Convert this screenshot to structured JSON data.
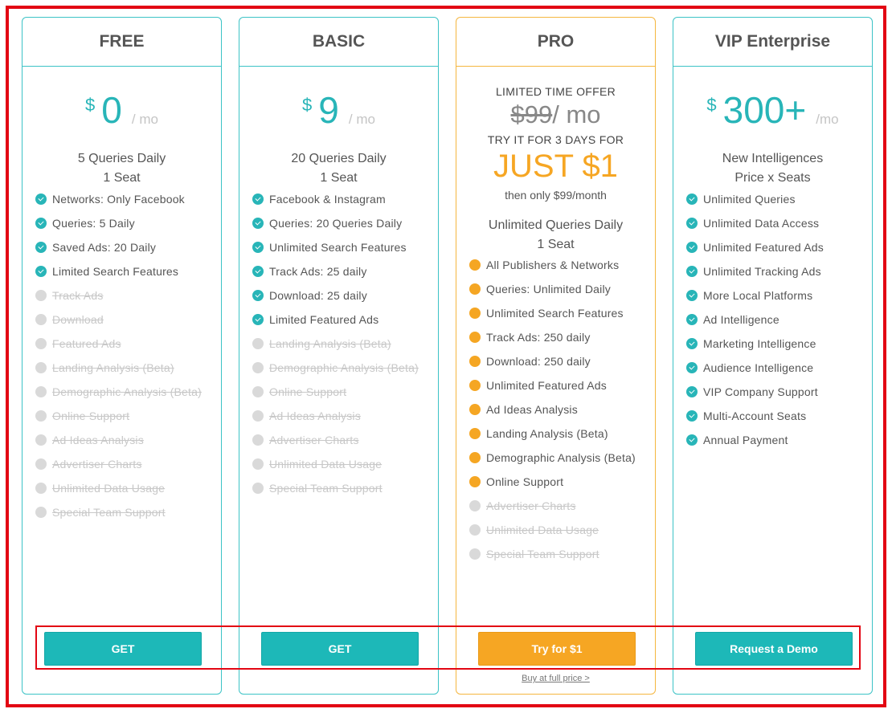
{
  "plans": {
    "free": {
      "name": "FREE",
      "currency": "$",
      "amount": "0",
      "period": "/ mo",
      "summary": [
        "5 Queries Daily",
        "1 Seat"
      ],
      "features": [
        {
          "text": "Networks: Only Facebook",
          "enabled": true
        },
        {
          "text": "Queries: 5 Daily",
          "enabled": true
        },
        {
          "text": "Saved Ads: 20 Daily",
          "enabled": true
        },
        {
          "text": "Limited Search Features",
          "enabled": true
        },
        {
          "text": "Track Ads",
          "enabled": false
        },
        {
          "text": "Download",
          "enabled": false
        },
        {
          "text": "Featured Ads",
          "enabled": false
        },
        {
          "text": "Landing Analysis (Beta)",
          "enabled": false
        },
        {
          "text": "Demographic Analysis (Beta)",
          "enabled": false
        },
        {
          "text": "Online Support",
          "enabled": false
        },
        {
          "text": "Ad Ideas Analysis",
          "enabled": false
        },
        {
          "text": "Advertiser Charts",
          "enabled": false
        },
        {
          "text": "Unlimited Data Usage",
          "enabled": false
        },
        {
          "text": "Special Team Support",
          "enabled": false
        }
      ],
      "button": "GET"
    },
    "basic": {
      "name": "BASIC",
      "currency": "$",
      "amount": "9",
      "period": "/ mo",
      "summary": [
        "20 Queries Daily",
        "1 Seat"
      ],
      "features": [
        {
          "text": "Facebook & Instagram",
          "enabled": true
        },
        {
          "text": "Queries: 20 Queries Daily",
          "enabled": true
        },
        {
          "text": "Unlimited Search Features",
          "enabled": true
        },
        {
          "text": "Track Ads: 25 daily",
          "enabled": true
        },
        {
          "text": "Download: 25 daily",
          "enabled": true
        },
        {
          "text": "Limited Featured Ads",
          "enabled": true
        },
        {
          "text": "Landing Analysis (Beta)",
          "enabled": false
        },
        {
          "text": "Demographic Analysis (Beta)",
          "enabled": false
        },
        {
          "text": "Online Support",
          "enabled": false
        },
        {
          "text": "Ad Ideas Analysis",
          "enabled": false
        },
        {
          "text": "Advertiser Charts",
          "enabled": false
        },
        {
          "text": "Unlimited Data Usage",
          "enabled": false
        },
        {
          "text": "Special Team Support",
          "enabled": false
        }
      ],
      "button": "GET"
    },
    "pro": {
      "name": "PRO",
      "offer_label": "LIMITED TIME OFFER",
      "old_price": "$99",
      "period": "/ mo",
      "trial_label": "TRY IT FOR 3 DAYS FOR",
      "deal": "JUST $1",
      "after_text": "then only $99/month",
      "summary": [
        "Unlimited Queries Daily",
        "1 Seat"
      ],
      "features": [
        {
          "text": "All Publishers & Networks",
          "enabled": true
        },
        {
          "text": "Queries: Unlimited Daily",
          "enabled": true
        },
        {
          "text": "Unlimited Search Features",
          "enabled": true
        },
        {
          "text": "Track Ads: 250 daily",
          "enabled": true
        },
        {
          "text": "Download: 250 daily",
          "enabled": true
        },
        {
          "text": "Unlimited Featured Ads",
          "enabled": true
        },
        {
          "text": "Ad Ideas Analysis",
          "enabled": true
        },
        {
          "text": "Landing Analysis (Beta)",
          "enabled": true
        },
        {
          "text": "Demographic Analysis (Beta)",
          "enabled": true
        },
        {
          "text": "Online Support",
          "enabled": true
        },
        {
          "text": "Advertiser Charts",
          "enabled": false
        },
        {
          "text": "Unlimited Data Usage",
          "enabled": false
        },
        {
          "text": "Special Team Support",
          "enabled": false
        }
      ],
      "button": "Try for $1",
      "full_price_link": "Buy at full price >"
    },
    "vip": {
      "name": "VIP Enterprise",
      "currency": "$",
      "amount": "300+",
      "period": "/mo",
      "summary": [
        "New Intelligences",
        "Price x Seats"
      ],
      "features": [
        {
          "text": "Unlimited Queries",
          "enabled": true
        },
        {
          "text": "Unlimited Data Access",
          "enabled": true
        },
        {
          "text": "Unlimited Featured Ads",
          "enabled": true
        },
        {
          "text": "Unlimited Tracking Ads",
          "enabled": true
        },
        {
          "text": "More Local Platforms",
          "enabled": true
        },
        {
          "text": "Ad Intelligence",
          "enabled": true
        },
        {
          "text": "Marketing Intelligence",
          "enabled": true
        },
        {
          "text": "Audience Intelligence",
          "enabled": true
        },
        {
          "text": "VIP Company Support",
          "enabled": true
        },
        {
          "text": "Multi-Account Seats",
          "enabled": true
        },
        {
          "text": "Annual Payment",
          "enabled": true
        }
      ],
      "button": "Request a Demo"
    }
  },
  "colors": {
    "teal": "#28b5b8",
    "orange": "#f6a623",
    "highlight_red": "#e30613",
    "disabled": "#d9d9d9"
  }
}
